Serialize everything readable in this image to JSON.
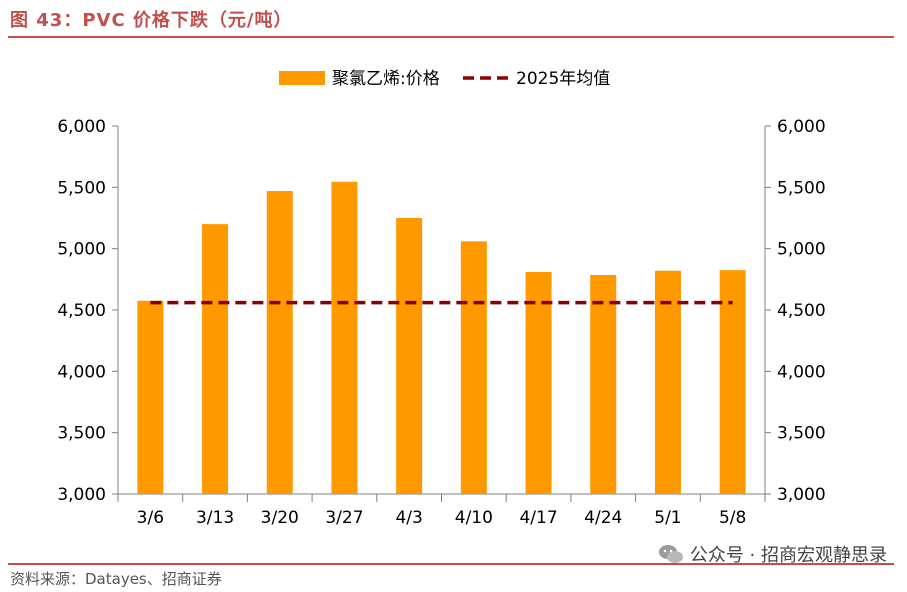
{
  "figure_title": "图 43：PVC 价格下跌（元/吨）",
  "source": "资料来源：Datayes、招商证券",
  "watermark": "公众号 · 招商宏观静思录",
  "colors": {
    "bar": "#FF9900",
    "average_line": "#8B0000",
    "title": "#C0504D"
  },
  "chart_data": {
    "type": "bar",
    "categories": [
      "3/6",
      "3/13",
      "3/20",
      "3/27",
      "4/3",
      "4/10",
      "4/17",
      "4/24",
      "5/1",
      "5/8"
    ],
    "series": [
      {
        "name": "聚氯乙烯:价格",
        "type": "bar",
        "values": [
          4575,
          5200,
          5470,
          5545,
          5250,
          5060,
          4810,
          4785,
          4820,
          4825
        ]
      },
      {
        "name": "2025年均值",
        "type": "line",
        "style": "dashed",
        "values": [
          4560,
          4560,
          4560,
          4560,
          4560,
          4560,
          4560,
          4560,
          4560,
          4560
        ]
      }
    ],
    "ylim": [
      3000,
      6000
    ],
    "yticks": [
      "3,000",
      "3,500",
      "4,000",
      "4,500",
      "5,000",
      "5,500",
      "6,000"
    ],
    "y2ticks": [
      "3,000",
      "3,500",
      "4,000",
      "4,500",
      "5,000",
      "5,500",
      "6,000"
    ],
    "legend_position": "top-center",
    "grid": false
  }
}
